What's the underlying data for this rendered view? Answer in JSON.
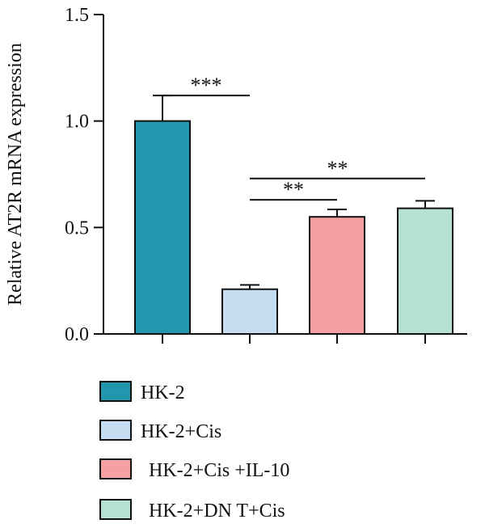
{
  "chart_data": {
    "type": "bar",
    "title": "",
    "xlabel": "",
    "ylabel": "Relative AT2R mRNA expression",
    "ylim": [
      0,
      1.5
    ],
    "yticks": [
      {
        "value": 0.0,
        "label": "0.0"
      },
      {
        "value": 0.5,
        "label": "0.5"
      },
      {
        "value": 1.0,
        "label": "1.0"
      },
      {
        "value": 1.5,
        "label": "1.5"
      }
    ],
    "categories": [
      "HK-2",
      "HK-2+Cis",
      "HK-2+Cis +IL-10",
      "HK-2+DN T+Cis"
    ],
    "values": [
      1.0,
      0.21,
      0.55,
      0.59
    ],
    "errors": [
      0.12,
      0.02,
      0.035,
      0.035
    ],
    "colors": [
      "#2196AC",
      "#C6DCF1",
      "#F5A0A3",
      "#B6E1D2"
    ],
    "edge_color": "#111111",
    "legend_position": "bottom-left",
    "significance": [
      {
        "from": 0,
        "to": 1,
        "level": 1.12,
        "label": "***"
      },
      {
        "from": 1,
        "to": 2,
        "level": 0.63,
        "label": "**"
      },
      {
        "from": 1,
        "to": 3,
        "level": 0.73,
        "label": "**"
      }
    ]
  }
}
